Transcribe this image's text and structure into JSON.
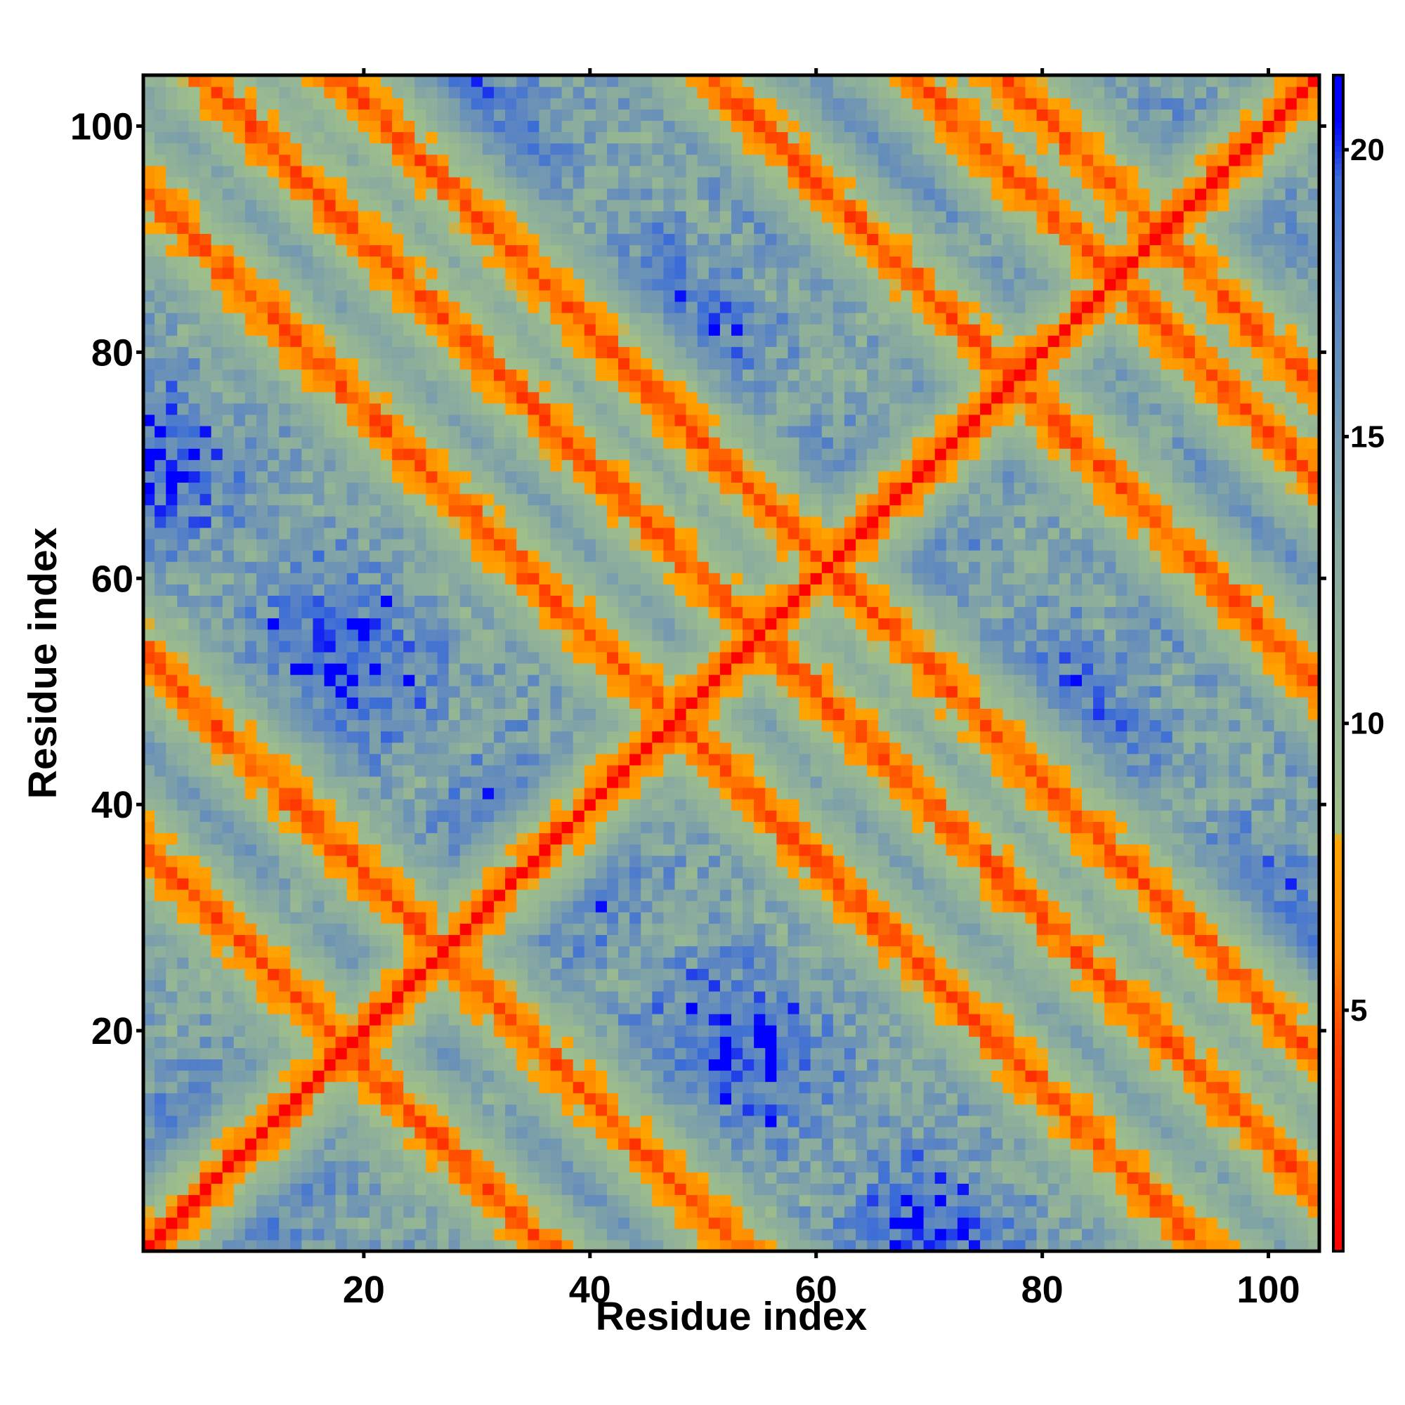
{
  "chart_data": {
    "type": "heatmap",
    "title": "",
    "xlabel": "Residue index",
    "ylabel": "Residue index",
    "n_residues": 104,
    "xlim": [
      0.5,
      104.5
    ],
    "ylim": [
      0.5,
      104.5
    ],
    "x_ticks": [
      20,
      40,
      60,
      80,
      100
    ],
    "y_ticks": [
      20,
      40,
      60,
      80,
      100
    ],
    "colorbar": {
      "range": [
        0.8,
        21.3
      ],
      "ticks": [
        5,
        10,
        15,
        20
      ],
      "stops": [
        {
          "value": 0.8,
          "color": "#ff0000"
        },
        {
          "value": 4.5,
          "color": "#ff4400"
        },
        {
          "value": 6.0,
          "color": "#ff8800"
        },
        {
          "value": 8.0,
          "color": "#ffa500"
        },
        {
          "value": 8.1,
          "color": "#9fbf8a"
        },
        {
          "value": 13.0,
          "color": "#88aaa0"
        },
        {
          "value": 17.0,
          "color": "#5f88c0"
        },
        {
          "value": 19.5,
          "color": "#3a6cd8"
        },
        {
          "value": 20.5,
          "color": "#0000ff"
        }
      ]
    },
    "contact_bands": [
      {
        "description": "main diagonal i=j",
        "offset": 0,
        "direction": "same"
      },
      {
        "description": "antiparallel band",
        "sum": 37
      },
      {
        "description": "antiparallel band",
        "sum": 54
      },
      {
        "description": "antiparallel band",
        "sum": 95
      },
      {
        "description": "antiparallel band",
        "sum": 122
      },
      {
        "description": "antiparallel band",
        "sum": 173
      },
      {
        "description": "antiparallel band",
        "sum": 181
      },
      {
        "description": "antiparallel band",
        "sum": 110
      },
      {
        "description": "antiparallel band",
        "sum": 155
      }
    ]
  },
  "colors": {
    "background": "#ffffff",
    "far": "#0000ff",
    "contact": "#ff0000",
    "near": "#ffa500",
    "mid": "#9fbf8a",
    "edge": "#5f88c0"
  }
}
